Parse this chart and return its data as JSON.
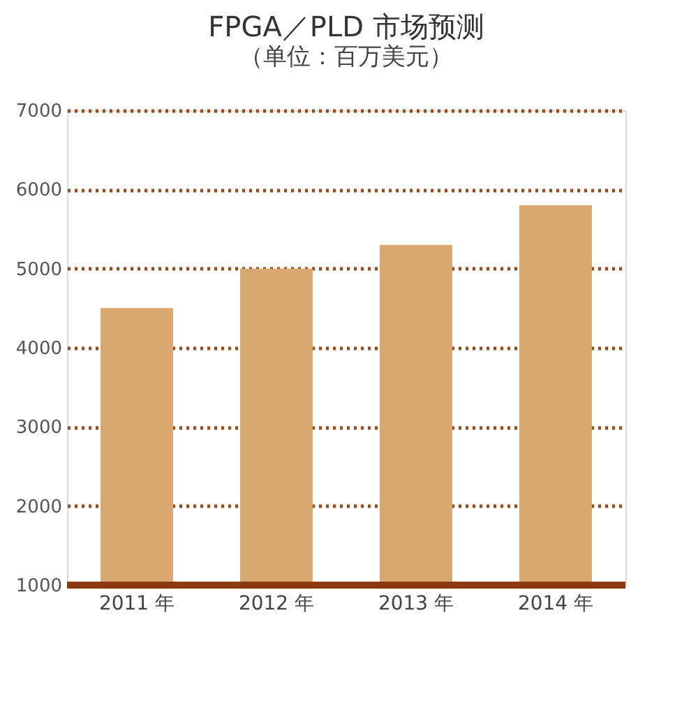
{
  "chart_data": {
    "type": "bar",
    "title": "FPGA／PLD 市场预测",
    "subtitle": "（单位：百万美元）",
    "categories": [
      "2011 年",
      "2012 年",
      "2013 年",
      "2014 年"
    ],
    "values": [
      4500,
      5000,
      5300,
      5800
    ],
    "color": "#d8a870",
    "ylim": [
      1000,
      7000
    ],
    "yticks": [
      1000,
      2000,
      3000,
      4000,
      5000,
      6000,
      7000
    ],
    "grid": "y"
  }
}
